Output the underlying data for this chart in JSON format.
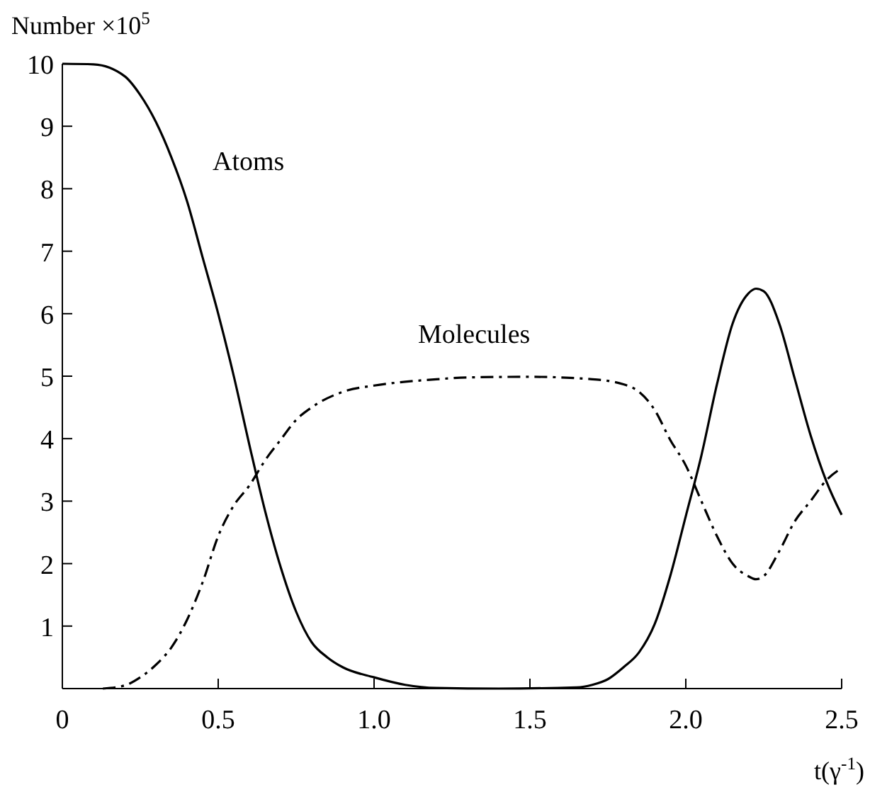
{
  "chart_data": {
    "type": "line",
    "ylabel": "Number ×10$^{5}$",
    "xlabel": "t(γ$^{-1}$)",
    "xlim": [
      0,
      2.5
    ],
    "ylim": [
      0,
      10
    ],
    "xticks": [
      0,
      0.5,
      {
        "value": 1,
        "label": "1.0"
      },
      1.5,
      {
        "value": 2,
        "label": "2.0"
      },
      2.5
    ],
    "yticks": [
      1,
      2,
      3,
      4,
      5,
      6,
      7,
      8,
      9,
      10
    ],
    "grid": false,
    "marker": "none",
    "series": [
      {
        "name": "Atoms",
        "color": "#000000",
        "line_style": "solid",
        "x": [
          0,
          0.1,
          0.2,
          0.25,
          0.3,
          0.35,
          0.4,
          0.45,
          0.5,
          0.55,
          0.6,
          0.65,
          0.7,
          0.75,
          0.8,
          0.85,
          0.9,
          1.0,
          1.1,
          1.2,
          1.4,
          1.65,
          1.7,
          1.75,
          1.8,
          1.85,
          1.9,
          1.95,
          2.0,
          2.05,
          2.1,
          2.15,
          2.2,
          2.225,
          2.25,
          2.3,
          2.35,
          2.4,
          2.45,
          2.5
        ],
        "values": [
          10,
          9.99,
          9.8,
          9.5,
          9.07,
          8.5,
          7.8,
          6.9,
          6.0,
          5.0,
          3.9,
          2.85,
          1.95,
          1.23,
          0.74,
          0.5,
          0.34,
          0.18,
          0.06,
          0.01,
          0,
          0.02,
          0.06,
          0.15,
          0.34,
          0.58,
          1.03,
          1.8,
          2.76,
          3.73,
          4.87,
          5.84,
          6.32,
          6.4,
          6.36,
          5.84,
          4.95,
          4.06,
          3.33,
          2.78
        ]
      },
      {
        "name": "Molecules",
        "color": "#000000",
        "line_style": "dashdot",
        "x": [
          0.13,
          0.2,
          0.25,
          0.3,
          0.35,
          0.4,
          0.45,
          0.5,
          0.55,
          0.6,
          0.65,
          0.7,
          0.75,
          0.8,
          0.9,
          1.0,
          1.1,
          1.2,
          1.3,
          1.5,
          1.7,
          1.8,
          1.85,
          1.9,
          1.95,
          2.0,
          2.05,
          2.1,
          2.15,
          2.2,
          2.225,
          2.25,
          2.3,
          2.35,
          2.4,
          2.45,
          2.5
        ],
        "values": [
          0,
          0.05,
          0.18,
          0.38,
          0.66,
          1.1,
          1.7,
          2.44,
          2.93,
          3.25,
          3.65,
          3.98,
          4.3,
          4.5,
          4.75,
          4.85,
          4.91,
          4.95,
          4.98,
          4.99,
          4.95,
          4.87,
          4.75,
          4.46,
          3.98,
          3.57,
          3.0,
          2.44,
          2.0,
          1.8,
          1.75,
          1.8,
          2.2,
          2.68,
          3.0,
          3.33,
          3.53
        ]
      }
    ]
  }
}
